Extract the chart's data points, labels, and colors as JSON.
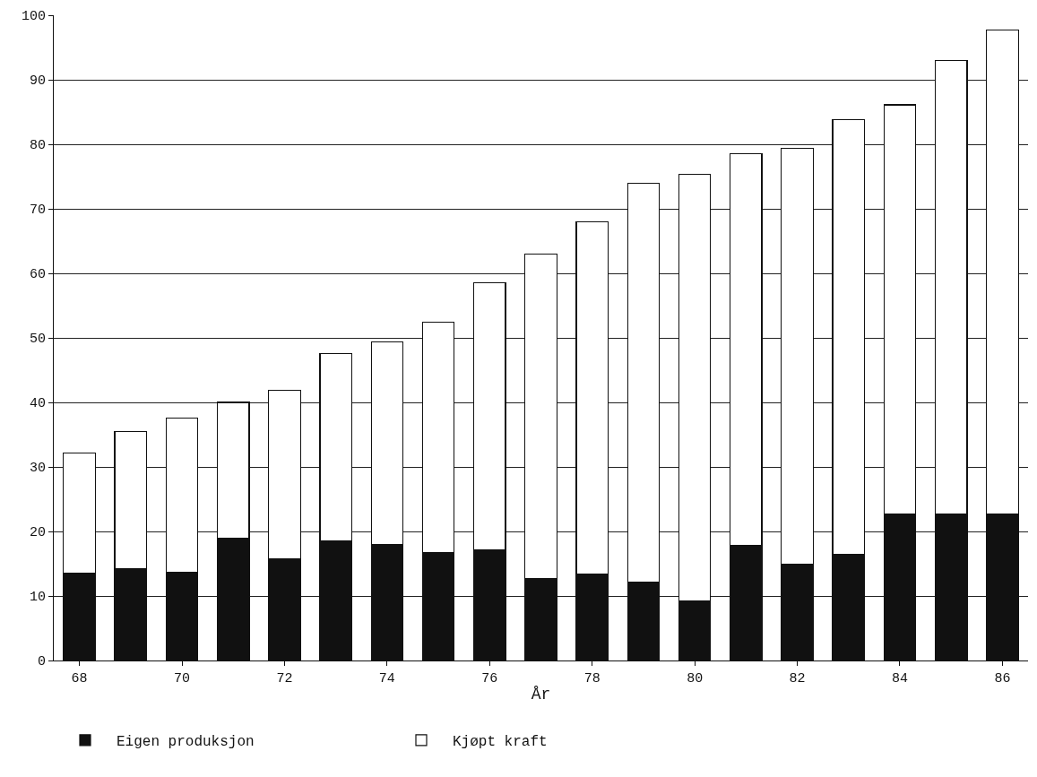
{
  "chart_data": {
    "type": "bar",
    "stacked": true,
    "xlabel": "År",
    "categories": [
      "68",
      null,
      "70",
      null,
      "72",
      null,
      "74",
      null,
      "76",
      null,
      "78",
      null,
      "80",
      null,
      "82",
      null,
      "84",
      null,
      "86"
    ],
    "series": [
      {
        "name": "Eigen produksjon",
        "color": "#111111",
        "values": [
          13.5,
          14.2,
          13.6,
          18.9,
          15.7,
          18.5,
          18.0,
          16.7,
          17.2,
          12.7,
          13.4,
          12.2,
          9.2,
          17.9,
          14.9,
          16.5,
          22.7,
          22.7,
          22.7
        ]
      },
      {
        "name": "Kjøpt kraft",
        "color": "#ffffff",
        "values": [
          18.7,
          21.3,
          24.0,
          21.1,
          26.2,
          29.1,
          31.4,
          35.7,
          41.3,
          50.3,
          54.6,
          61.8,
          66.2,
          60.6,
          64.5,
          67.3,
          63.4,
          70.3,
          75.0
        ]
      }
    ],
    "ylim": [
      0,
      100
    ],
    "yticks": [
      0,
      10,
      20,
      30,
      40,
      50,
      60,
      70,
      80,
      90,
      100
    ],
    "grid": "y",
    "legend": "bottom"
  }
}
